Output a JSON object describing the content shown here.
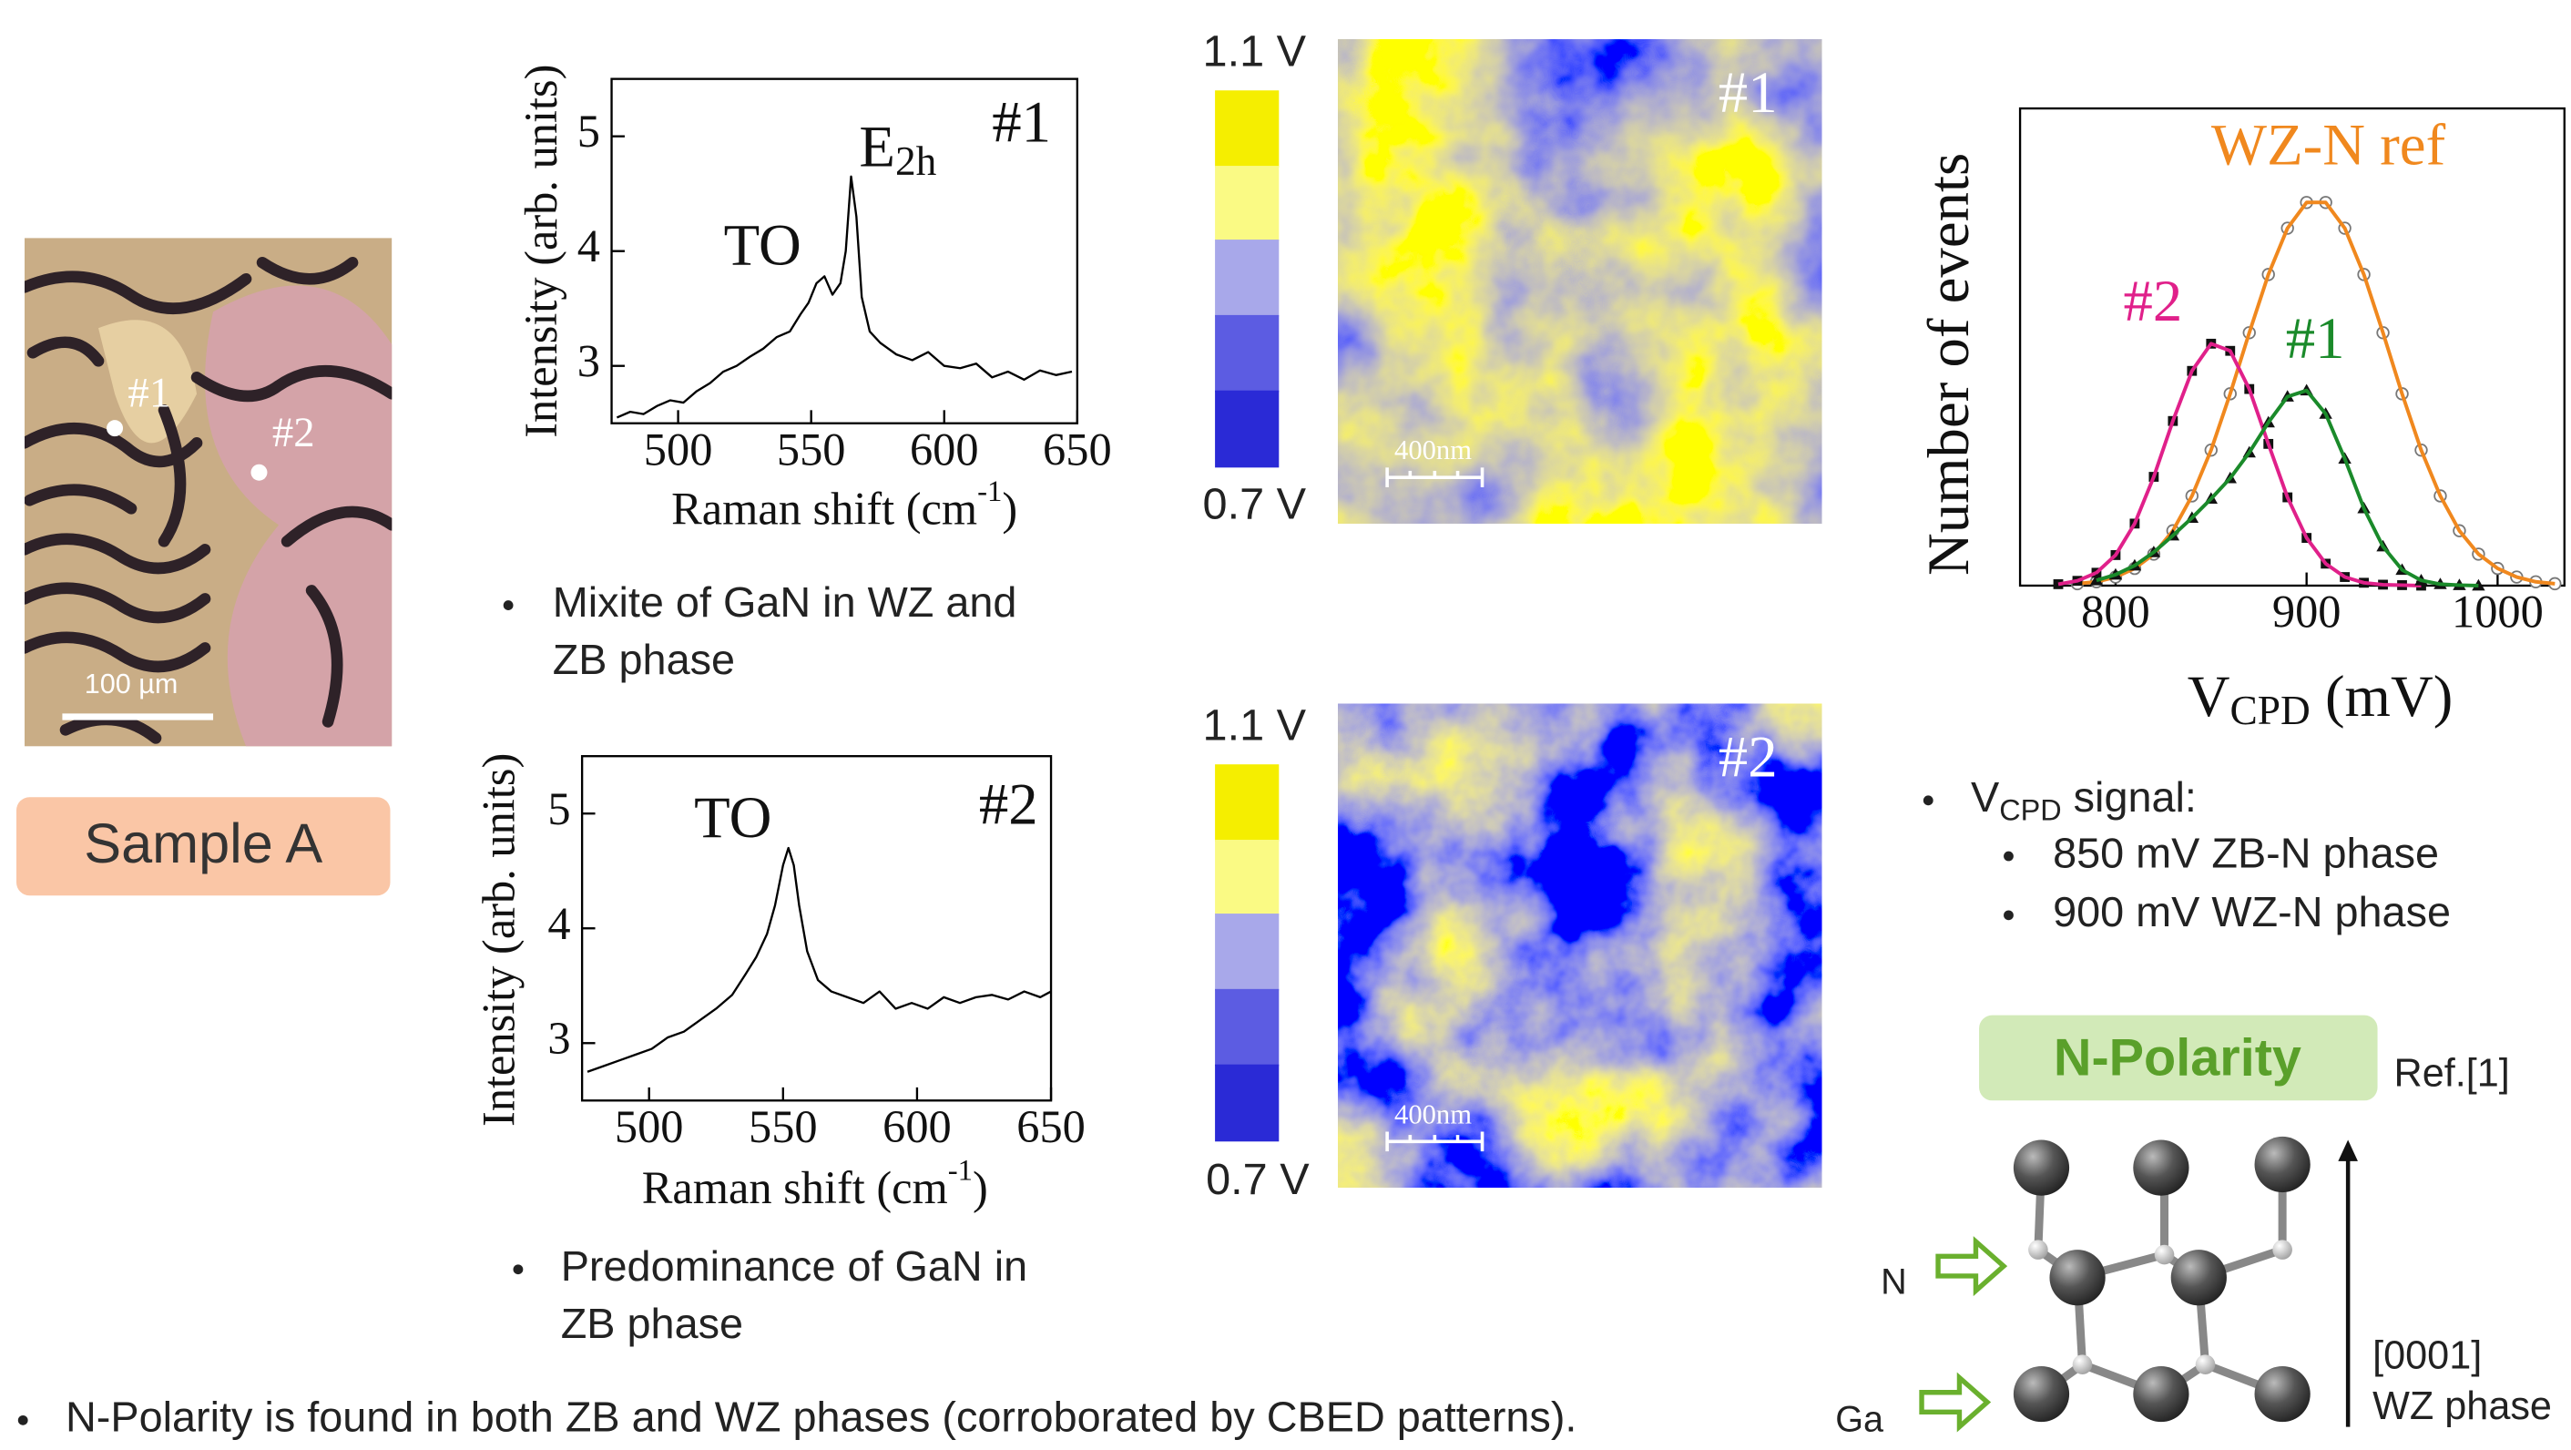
{
  "chart_data": [
    {
      "type": "line",
      "title": "#1",
      "annotations": [
        "TO",
        {
          "main": "E",
          "sub": "2h"
        }
      ],
      "x_label": {
        "main": "Raman shift (cm",
        "sup": "-1",
        "end": ")"
      },
      "y_label": "Intensity (arb. units)",
      "xlim": [
        475,
        650
      ],
      "ylim": [
        2.5,
        5.5
      ],
      "xticks": [
        500,
        550,
        600,
        650
      ],
      "yticks": [
        3,
        4,
        5
      ],
      "color": "#000000",
      "x": [
        477,
        482,
        487,
        492,
        497,
        502,
        507,
        512,
        517,
        522,
        527,
        532,
        537,
        542,
        546,
        549,
        552,
        555,
        558,
        561,
        563,
        565,
        567,
        569,
        572,
        576,
        582,
        588,
        594,
        600,
        606,
        612,
        618,
        624,
        630,
        636,
        642,
        648
      ],
      "values": [
        2.55,
        2.6,
        2.58,
        2.65,
        2.7,
        2.68,
        2.78,
        2.85,
        2.95,
        3.0,
        3.08,
        3.15,
        3.25,
        3.3,
        3.45,
        3.55,
        3.72,
        3.78,
        3.62,
        3.72,
        4.0,
        4.65,
        4.3,
        3.6,
        3.3,
        3.2,
        3.1,
        3.05,
        3.12,
        3.0,
        2.98,
        3.02,
        2.9,
        2.95,
        2.88,
        2.96,
        2.92,
        2.95
      ]
    },
    {
      "type": "line",
      "title": "#2",
      "annotations": [
        "TO"
      ],
      "x_label": {
        "main": "Raman shift (cm",
        "sup": "-1",
        "end": ")"
      },
      "y_label": "Intensity (arb. units)",
      "xlim": [
        475,
        650
      ],
      "ylim": [
        2.5,
        5.5
      ],
      "xticks": [
        500,
        550,
        600,
        650
      ],
      "yticks": [
        3,
        4,
        5
      ],
      "color": "#000000",
      "x": [
        477,
        483,
        489,
        495,
        501,
        507,
        513,
        519,
        525,
        531,
        536,
        540,
        544,
        547,
        550,
        552,
        554,
        556,
        559,
        563,
        568,
        574,
        580,
        586,
        592,
        598,
        604,
        610,
        616,
        622,
        628,
        634,
        640,
        646,
        650
      ],
      "values": [
        2.75,
        2.8,
        2.85,
        2.9,
        2.95,
        3.05,
        3.1,
        3.2,
        3.3,
        3.42,
        3.6,
        3.75,
        3.95,
        4.2,
        4.55,
        4.7,
        4.55,
        4.2,
        3.8,
        3.55,
        3.45,
        3.4,
        3.35,
        3.45,
        3.3,
        3.35,
        3.3,
        3.4,
        3.35,
        3.4,
        3.42,
        3.38,
        3.45,
        3.4,
        3.45
      ]
    },
    {
      "type": "line",
      "x_label": {
        "main": "V",
        "sub": "CPD",
        "end": " (mV)"
      },
      "y_label": "Number of events",
      "xlim": [
        750,
        1035
      ],
      "ylim": [
        0,
        100
      ],
      "xticks": [
        800,
        900,
        1000
      ],
      "series": [
        {
          "name": "WZ-N ref",
          "color": "#f0881e",
          "marker": "circle",
          "x": [
            780,
            790,
            800,
            810,
            820,
            830,
            840,
            850,
            860,
            870,
            880,
            890,
            900,
            910,
            920,
            930,
            940,
            950,
            960,
            970,
            980,
            990,
            1000,
            1010,
            1020,
            1030
          ],
          "values": [
            0.4,
            0.8,
            1.8,
            3.6,
            6.6,
            11.5,
            18.8,
            28.4,
            40.2,
            53.0,
            65.2,
            74.9,
            80.3,
            80.3,
            74.9,
            65.2,
            53.0,
            40.2,
            28.4,
            18.8,
            11.5,
            6.6,
            3.6,
            1.8,
            0.8,
            0.4
          ]
        },
        {
          "name": "#2",
          "color": "#e0208a",
          "marker": "square",
          "x": [
            770,
            780,
            790,
            800,
            810,
            820,
            830,
            840,
            850,
            860,
            870,
            880,
            890,
            900,
            910,
            920,
            930,
            940,
            950,
            960
          ],
          "values": [
            0.3,
            1.0,
            2.7,
            6.4,
            13.0,
            22.8,
            34.5,
            45.0,
            50.7,
            49.2,
            41.2,
            29.7,
            18.5,
            10.0,
            4.6,
            1.8,
            0.6,
            0.2,
            0.1,
            0
          ]
        },
        {
          "name": "#1",
          "color": "#1a8a2a",
          "marker": "triangle",
          "x": [
            790,
            800,
            810,
            820,
            830,
            840,
            850,
            860,
            870,
            880,
            890,
            900,
            910,
            920,
            930,
            940,
            950,
            960,
            970,
            980,
            990
          ],
          "values": [
            1.1,
            2.3,
            4.2,
            7.0,
            10.5,
            14.2,
            18.2,
            22.5,
            27.9,
            34.2,
            39.6,
            40.9,
            36.0,
            26.6,
            16.2,
            8.2,
            3.3,
            1.1,
            0.3,
            0.1,
            0
          ]
        }
      ]
    }
  ],
  "slide": {
    "sample": {
      "label": "Sample A",
      "spot_1": "#1",
      "spot_2": "#2",
      "scale_bar": "100 µm"
    },
    "raman_1_bullet": [
      "Mixite of GaN in WZ and",
      "ZB phase"
    ],
    "raman_2_bullet": [
      "Predominance of GaN in",
      "ZB phase"
    ],
    "map_1": {
      "label": "#1",
      "scale_bar": "400nm",
      "max": "1.1 V",
      "min": "0.7 V"
    },
    "map_2": {
      "label": "#2",
      "scale_bar": "400nm",
      "max": "1.1 V",
      "min": "0.7 V"
    },
    "vcpd_bullet": {
      "main": "V",
      "sub": "CPD",
      "end": " signal:"
    },
    "vcpd_items": [
      "850 mV ZB-N phase",
      "900 mV WZ-N phase"
    ],
    "polarity": {
      "title": "N-Polarity",
      "ref": "Ref.[1]",
      "atom_n": "N",
      "atom_ga": "Ga",
      "direction": "[0001]",
      "phase": "WZ phase"
    },
    "conclusion": "N-Polarity is found in both ZB and WZ phases (corroborated by CBED patterns)."
  }
}
